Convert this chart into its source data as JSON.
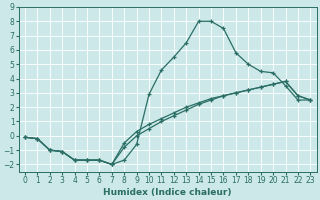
{
  "xlabel": "Humidex (Indice chaleur)",
  "background_color": "#cce8e8",
  "grid_color": "#ffffff",
  "line_color": "#2a6e65",
  "x_ticks": [
    0,
    1,
    2,
    3,
    4,
    5,
    6,
    7,
    8,
    9,
    10,
    11,
    12,
    13,
    14,
    15,
    16,
    17,
    18,
    19,
    20,
    21,
    22,
    23
  ],
  "ylim": [
    -2.5,
    9.0
  ],
  "xlim": [
    -0.5,
    23.5
  ],
  "line1_x": [
    0,
    1,
    2,
    3,
    4,
    5,
    6,
    7,
    8,
    9,
    10,
    11,
    12,
    13,
    14,
    15,
    16,
    17,
    18,
    19,
    20,
    21,
    22,
    23
  ],
  "line1_y": [
    -0.1,
    -0.2,
    -1.0,
    -1.1,
    -1.7,
    -1.7,
    -1.7,
    -2.0,
    -1.7,
    -0.6,
    2.9,
    4.6,
    5.5,
    6.5,
    8.0,
    8.0,
    7.5,
    5.8,
    5.0,
    4.5,
    4.4,
    3.5,
    2.5,
    2.5
  ],
  "line2_x": [
    0,
    1,
    2,
    3,
    4,
    5,
    6,
    7,
    8,
    9,
    10,
    11,
    12,
    13,
    14,
    15,
    16,
    17,
    18,
    19,
    20,
    21,
    22,
    23
  ],
  "line2_y": [
    -0.1,
    -0.2,
    -1.0,
    -1.1,
    -1.7,
    -1.7,
    -1.7,
    -2.0,
    -0.8,
    0.0,
    0.5,
    1.0,
    1.4,
    1.8,
    2.2,
    2.5,
    2.8,
    3.0,
    3.2,
    3.4,
    3.6,
    3.8,
    2.8,
    2.5
  ],
  "line3_x": [
    0,
    1,
    2,
    3,
    4,
    5,
    6,
    7,
    8,
    9,
    10,
    11,
    12,
    13,
    14,
    15,
    16,
    17,
    18,
    19,
    20,
    21,
    22,
    23
  ],
  "line3_y": [
    -0.1,
    -0.2,
    -1.0,
    -1.1,
    -1.7,
    -1.7,
    -1.7,
    -2.0,
    -0.5,
    0.3,
    0.8,
    1.2,
    1.6,
    2.0,
    2.3,
    2.6,
    2.8,
    3.0,
    3.2,
    3.4,
    3.6,
    3.8,
    2.8,
    2.5
  ]
}
